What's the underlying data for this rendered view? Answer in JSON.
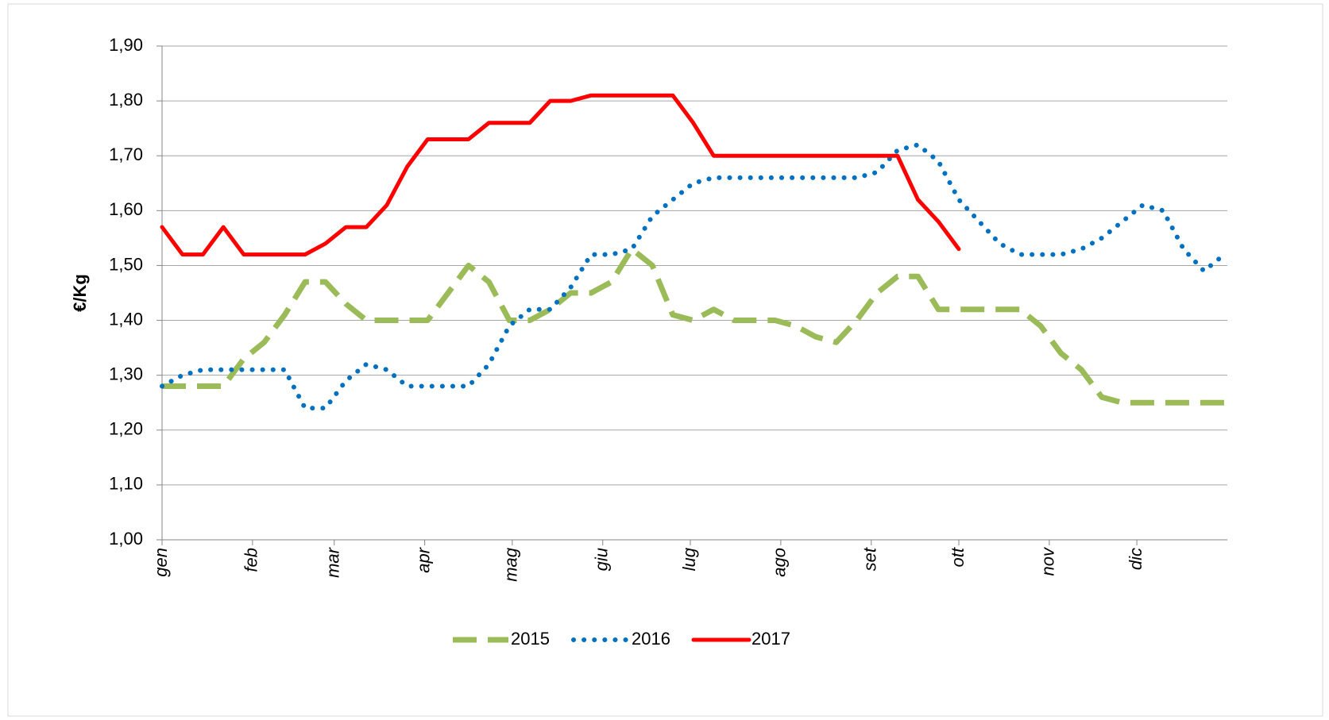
{
  "chart_data": {
    "type": "line",
    "y_label": "€/Kg",
    "x": [
      1,
      8,
      15,
      22,
      29,
      36,
      43,
      50,
      57,
      64,
      71,
      78,
      85,
      92,
      99,
      106,
      113,
      120,
      127,
      134,
      141,
      148,
      155,
      162,
      169,
      176,
      183,
      190,
      197,
      204,
      211,
      218,
      225,
      232,
      239,
      246,
      253,
      260,
      267,
      274,
      281,
      288,
      295,
      302,
      309,
      316,
      323,
      330,
      337,
      344,
      351,
      358,
      365
    ],
    "xlim": [
      1,
      366
    ],
    "xticks": [
      {
        "value": 1,
        "label": "gen"
      },
      {
        "value": 32,
        "label": "feb"
      },
      {
        "value": 60,
        "label": "mar"
      },
      {
        "value": 91,
        "label": "apr"
      },
      {
        "value": 121,
        "label": "mag"
      },
      {
        "value": 152,
        "label": "giu"
      },
      {
        "value": 182,
        "label": "lug"
      },
      {
        "value": 213,
        "label": "ago"
      },
      {
        "value": 244,
        "label": "set"
      },
      {
        "value": 274,
        "label": "ott"
      },
      {
        "value": 305,
        "label": "nov"
      },
      {
        "value": 335,
        "label": "dic"
      }
    ],
    "ylim": [
      1.0,
      1.9
    ],
    "yticks": [
      {
        "value": 1.0,
        "label": "1,00"
      },
      {
        "value": 1.1,
        "label": "1,10"
      },
      {
        "value": 1.2,
        "label": "1,20"
      },
      {
        "value": 1.3,
        "label": "1,30"
      },
      {
        "value": 1.4,
        "label": "1,40"
      },
      {
        "value": 1.5,
        "label": "1,50"
      },
      {
        "value": 1.6,
        "label": "1,60"
      },
      {
        "value": 1.7,
        "label": "1,70"
      },
      {
        "value": 1.8,
        "label": "1,80"
      },
      {
        "value": 1.9,
        "label": "1,90"
      }
    ],
    "grid": true,
    "legend": "bottom",
    "series": [
      {
        "name": "2015",
        "color": "#9bbb59",
        "dash": "dashed",
        "values": [
          1.28,
          1.28,
          1.28,
          1.28,
          1.33,
          1.36,
          1.41,
          1.47,
          1.47,
          1.43,
          1.4,
          1.4,
          1.4,
          1.4,
          1.45,
          1.5,
          1.47,
          1.4,
          1.4,
          1.42,
          1.45,
          1.45,
          1.47,
          1.53,
          1.5,
          1.41,
          1.4,
          1.42,
          1.4,
          1.4,
          1.4,
          1.39,
          1.37,
          1.36,
          1.4,
          1.45,
          1.48,
          1.48,
          1.42,
          1.42,
          1.42,
          1.42,
          1.42,
          1.39,
          1.34,
          1.31,
          1.26,
          1.25,
          1.25,
          1.25,
          1.25,
          1.25,
          1.25
        ]
      },
      {
        "name": "2016",
        "color": "#0070c0",
        "dash": "dotted",
        "values": [
          1.28,
          1.3,
          1.31,
          1.31,
          1.31,
          1.31,
          1.31,
          1.24,
          1.24,
          1.29,
          1.32,
          1.31,
          1.28,
          1.28,
          1.28,
          1.28,
          1.32,
          1.39,
          1.42,
          1.42,
          1.46,
          1.52,
          1.52,
          1.53,
          1.59,
          1.62,
          1.65,
          1.66,
          1.66,
          1.66,
          1.66,
          1.66,
          1.66,
          1.66,
          1.66,
          1.67,
          1.71,
          1.72,
          1.69,
          1.62,
          1.58,
          1.54,
          1.52,
          1.52,
          1.52,
          1.53,
          1.55,
          1.58,
          1.61,
          1.6,
          1.53,
          1.49,
          1.52
        ]
      },
      {
        "name": "2017",
        "color": "#ff0000",
        "dash": "solid",
        "values": [
          1.57,
          1.52,
          1.52,
          1.57,
          1.52,
          1.52,
          1.52,
          1.52,
          1.54,
          1.57,
          1.57,
          1.61,
          1.68,
          1.73,
          1.73,
          1.73,
          1.76,
          1.76,
          1.76,
          1.8,
          1.8,
          1.81,
          1.81,
          1.81,
          1.81,
          1.81,
          1.76,
          1.7,
          1.7,
          1.7,
          1.7,
          1.7,
          1.7,
          1.7,
          1.7,
          1.7,
          1.7,
          1.62,
          1.58,
          1.53,
          null,
          null,
          null,
          null,
          null,
          null,
          null,
          null,
          null,
          null,
          null,
          null,
          null
        ]
      }
    ]
  }
}
